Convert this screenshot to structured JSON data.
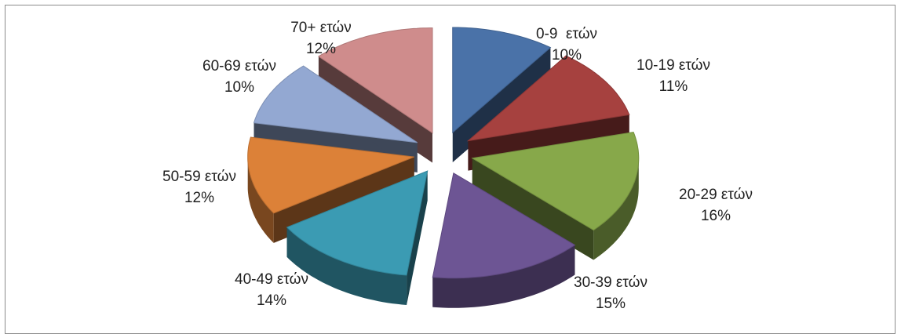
{
  "chart_data": {
    "type": "pie",
    "title": "",
    "style": "3d-exploded",
    "slices": [
      {
        "label": "0-9  ετών",
        "percent_label": "10%",
        "value": 10,
        "color": "#4a72a8"
      },
      {
        "label": "10-19 ετών",
        "percent_label": "11%",
        "value": 11,
        "color": "#a6413f"
      },
      {
        "label": "20-29 ετών",
        "percent_label": "16%",
        "value": 16,
        "color": "#87a84a"
      },
      {
        "label": "30-39 ετών",
        "percent_label": "15%",
        "value": 15,
        "color": "#6d5594"
      },
      {
        "label": "40-49 ετών",
        "percent_label": "14%",
        "value": 14,
        "color": "#3b9bb3"
      },
      {
        "label": "50-59 ετών",
        "percent_label": "12%",
        "value": 12,
        "color": "#dc8138"
      },
      {
        "label": "60-69 ετών",
        "percent_label": "10%",
        "value": 10,
        "color": "#93a8d2"
      },
      {
        "label": "70+ ετών",
        "percent_label": "12%",
        "value": 12,
        "color": "#cf8c8c"
      }
    ]
  }
}
